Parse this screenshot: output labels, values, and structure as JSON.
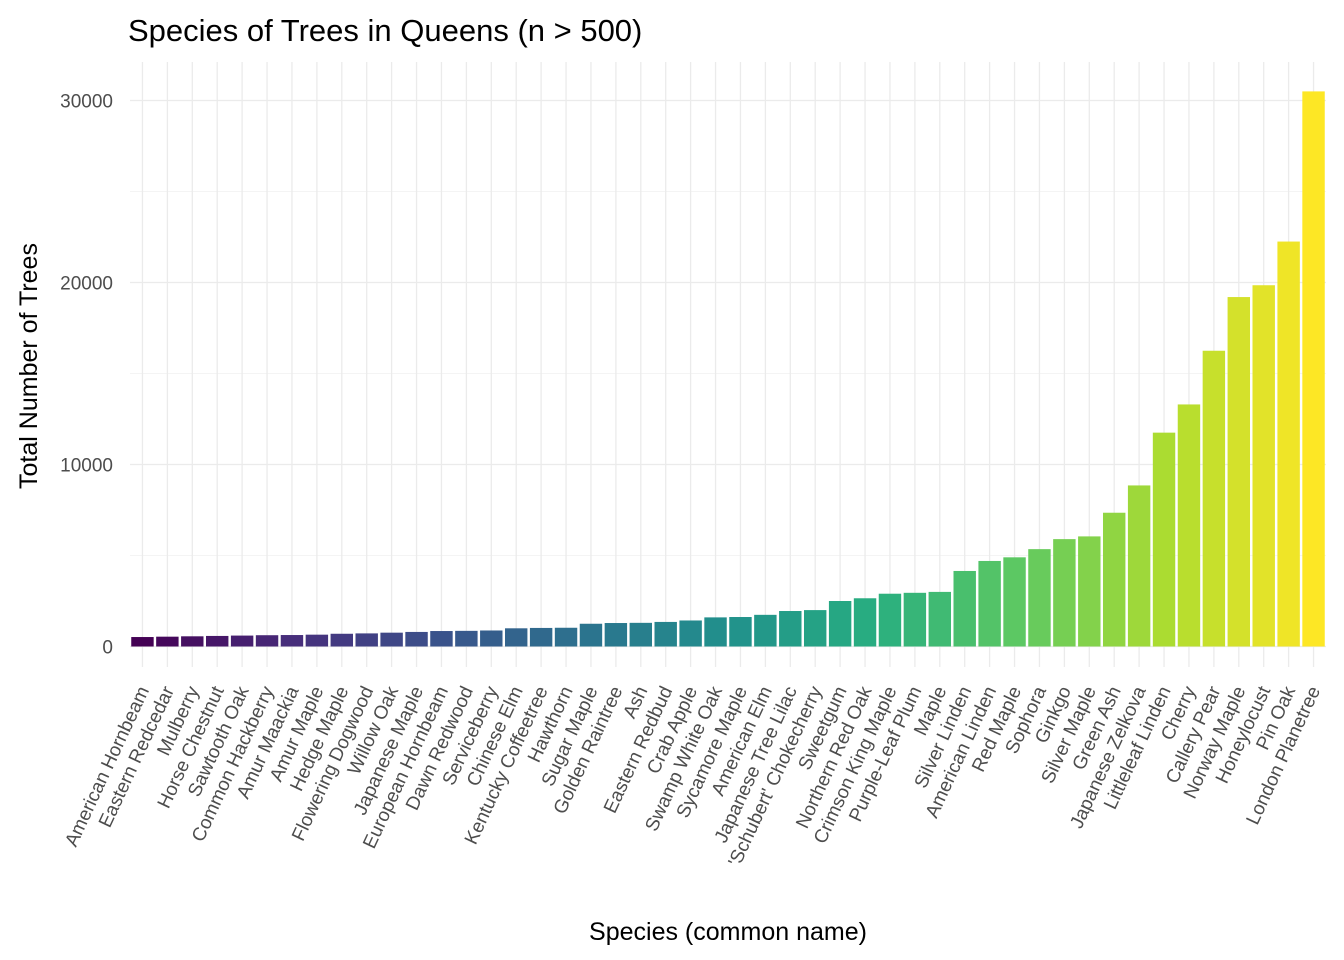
{
  "chart_data": {
    "type": "bar",
    "title": "Species of Trees in Queens (n > 500)",
    "xlabel": "Species (common name)",
    "ylabel": "Total Number of Trees",
    "ylim": [
      -1500,
      32000
    ],
    "yticks": [
      0,
      10000,
      20000,
      30000
    ],
    "grid": true,
    "legend": "none",
    "color_scale": "viridis",
    "colors": [
      "#440154",
      "#472d7b",
      "#3b528b",
      "#2c728e",
      "#21918c",
      "#28ae80",
      "#5ec962",
      "#addc30",
      "#fde725"
    ],
    "categories": [
      "American Hornbeam",
      "Eastern Redcedar",
      "Mulberry",
      "Horse Chestnut",
      "Sawtooth Oak",
      "Common Hackberry",
      "Amur Maackia",
      "Amur Maple",
      "Hedge Maple",
      "Flowering Dogwood",
      "Willow Oak",
      "Japanese Maple",
      "European Hornbeam",
      "Dawn Redwood",
      "Serviceberry",
      "Chinese Elm",
      "Kentucky Coffeetree",
      "Hawthorn",
      "Sugar Maple",
      "Golden Raintree",
      "Ash",
      "Eastern Redbud",
      "Crab Apple",
      "Swamp White Oak",
      "Sycamore Maple",
      "American Elm",
      "Japanese Tree Lilac",
      "'Schubert' Chokecherry",
      "Sweetgum",
      "Northern Red Oak",
      "Crimson King Maple",
      "Purple-Leaf Plum",
      "Maple",
      "Silver Linden",
      "American Linden",
      "Red Maple",
      "Sophora",
      "Ginkgo",
      "Silver Maple",
      "Green Ash",
      "Japanese Zelkova",
      "Littleleaf Linden",
      "Cherry",
      "Callery Pear",
      "Norway Maple",
      "Honeylocust",
      "Pin Oak",
      "London Planetree"
    ],
    "values": [
      520,
      540,
      560,
      580,
      600,
      620,
      630,
      650,
      700,
      720,
      760,
      800,
      850,
      860,
      880,
      1000,
      1020,
      1030,
      1250,
      1290,
      1300,
      1350,
      1430,
      1600,
      1620,
      1740,
      1950,
      2000,
      2500,
      2650,
      2900,
      2950,
      3000,
      4150,
      4700,
      4900,
      5350,
      5900,
      6050,
      7350,
      8850,
      11750,
      13300,
      16250,
      19200,
      19850,
      22250,
      30500
    ]
  }
}
